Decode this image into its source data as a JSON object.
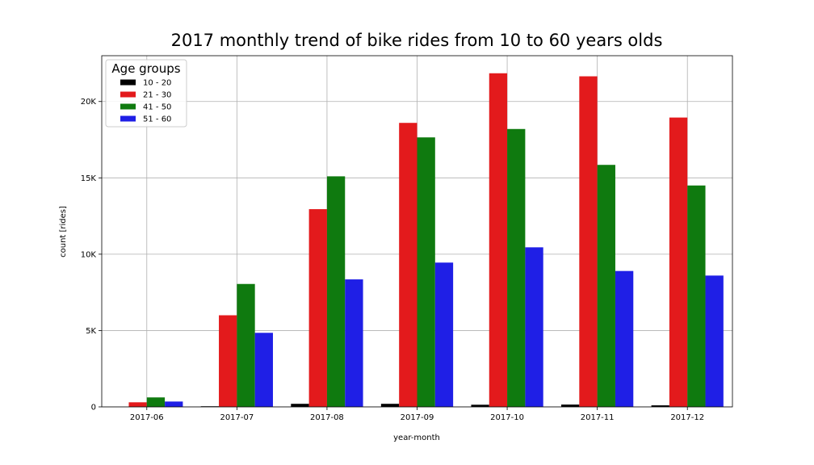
{
  "chart_data": {
    "type": "bar",
    "title": "2017 monthly trend of bike rides from 10 to 60 years olds",
    "xlabel": "year-month",
    "ylabel": "count [rides]",
    "categories": [
      "2017-06",
      "2017-07",
      "2017-08",
      "2017-09",
      "2017-10",
      "2017-11",
      "2017-12"
    ],
    "ylim": [
      0,
      23000
    ],
    "yticks": [
      0,
      5000,
      10000,
      15000,
      20000
    ],
    "ytick_labels": [
      "0",
      "5K",
      "10K",
      "15K",
      "20K"
    ],
    "grid": true,
    "legend": {
      "title": "Age groups",
      "placement": "top-left"
    },
    "series": [
      {
        "name": "10 - 20",
        "color": "#000000",
        "values": [
          0,
          40,
          200,
          200,
          140,
          150,
          100
        ]
      },
      {
        "name": "21 - 30",
        "color": "#e31a1c",
        "values": [
          300,
          6000,
          12950,
          18600,
          21850,
          21650,
          18950
        ]
      },
      {
        "name": "41 - 50",
        "color": "#0f7a0f",
        "values": [
          620,
          8050,
          15100,
          17650,
          18200,
          15850,
          14500
        ]
      },
      {
        "name": "51 - 60",
        "color": "#1f1fe6",
        "values": [
          350,
          4850,
          8350,
          9450,
          10450,
          8900,
          8600
        ]
      }
    ]
  }
}
